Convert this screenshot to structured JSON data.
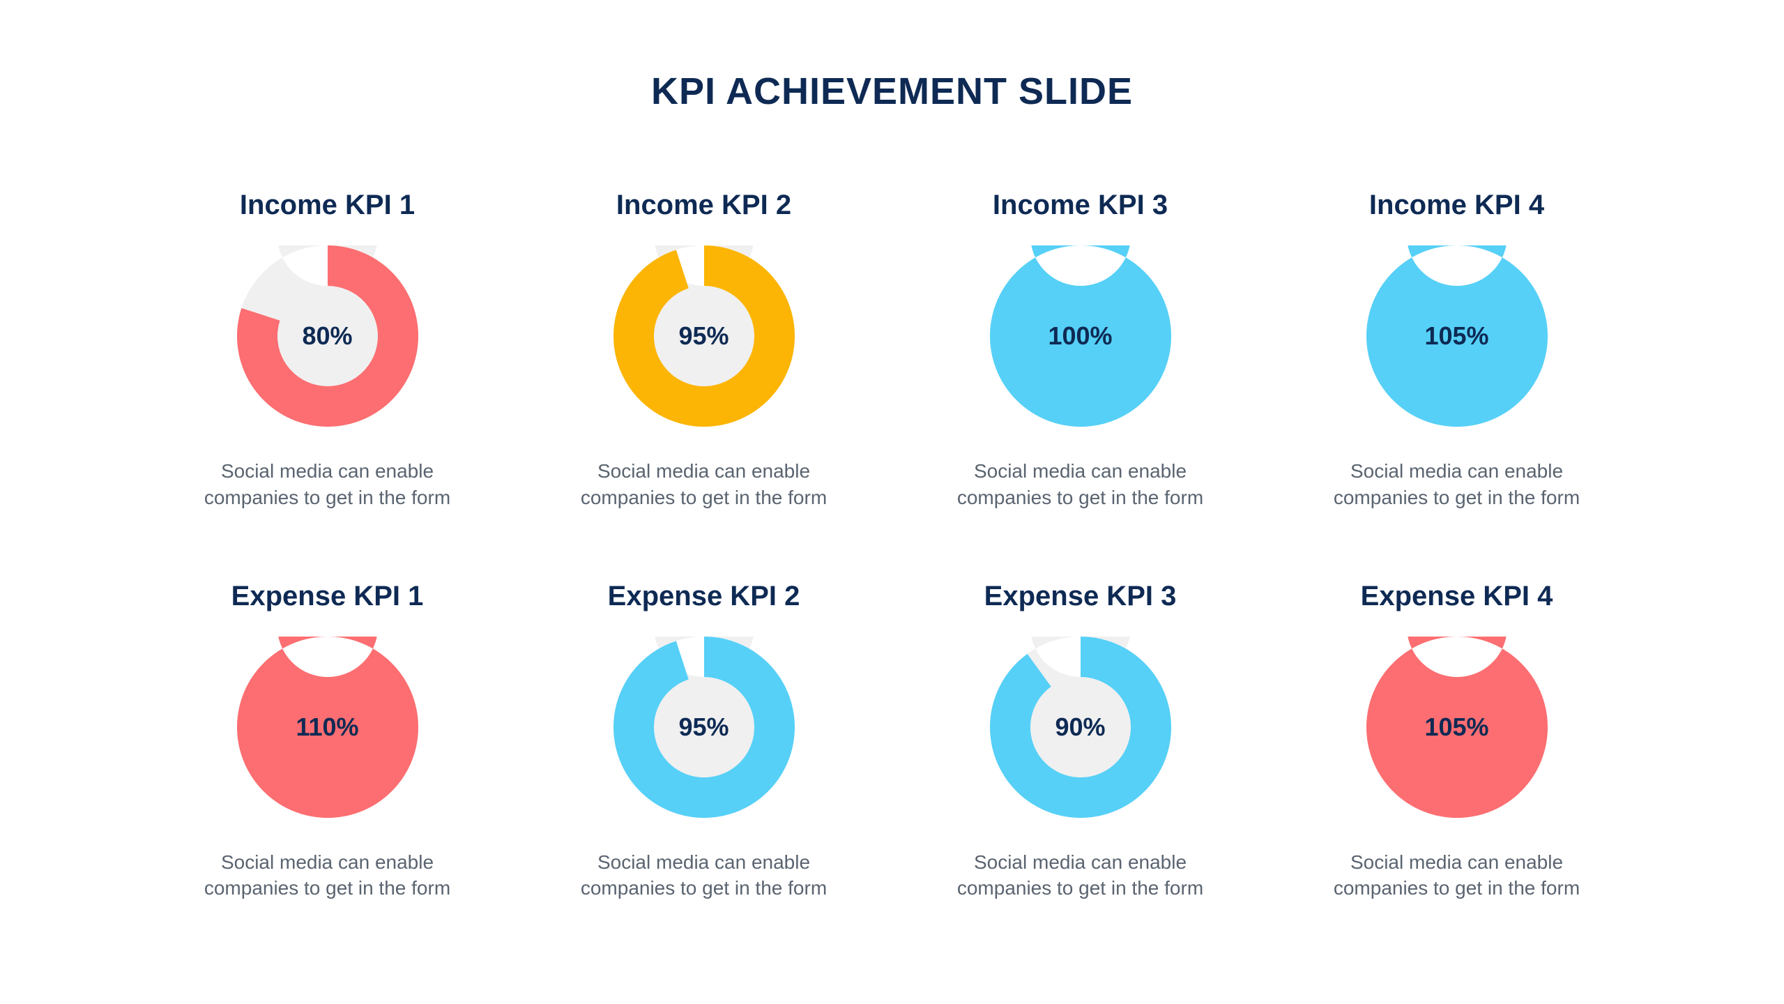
{
  "title": "KPI ACHIEVEMENT SLIDE",
  "title_color": "#0e2a54",
  "title_fontsize": 54,
  "background_color": "#ffffff",
  "desc_color": "#5a6470",
  "desc_fontsize": 28,
  "kpi_title_color": "#0e2a54",
  "kpi_title_fontsize": 40,
  "donut": {
    "outer_radius": 130,
    "inner_radius": 72,
    "track_color": "#f0f0f0",
    "value_fontsize": 36,
    "value_color": "#0e2a54"
  },
  "colors": {
    "coral": "#fc6e71",
    "amber": "#fcb505",
    "sky": "#56d0f7"
  },
  "kpis": [
    {
      "title": "Income KPI 1",
      "percent": 80,
      "label": "80%",
      "color": "#fc6e71",
      "desc": "Social media can enable companies to get in the form"
    },
    {
      "title": "Income KPI 2",
      "percent": 95,
      "label": "95%",
      "color": "#fcb505",
      "desc": "Social media can enable companies to get in the form"
    },
    {
      "title": "Income KPI 3",
      "percent": 100,
      "label": "100%",
      "color": "#56d0f7",
      "desc": "Social media can enable companies to get in the form"
    },
    {
      "title": "Income KPI 4",
      "percent": 105,
      "label": "105%",
      "color": "#56d0f7",
      "desc": "Social media can enable companies to get in the form"
    },
    {
      "title": "Expense KPI 1",
      "percent": 110,
      "label": "110%",
      "color": "#fc6e71",
      "desc": "Social media can enable companies to get in the form"
    },
    {
      "title": "Expense KPI 2",
      "percent": 95,
      "label": "95%",
      "color": "#56d0f7",
      "desc": "Social media can enable companies to get in the form"
    },
    {
      "title": "Expense KPI 3",
      "percent": 90,
      "label": "90%",
      "color": "#56d0f7",
      "desc": "Social media can enable companies to get in the form"
    },
    {
      "title": "Expense KPI 4",
      "percent": 105,
      "label": "105%",
      "color": "#fc6e71",
      "desc": "Social media can enable companies to get in the form"
    }
  ]
}
